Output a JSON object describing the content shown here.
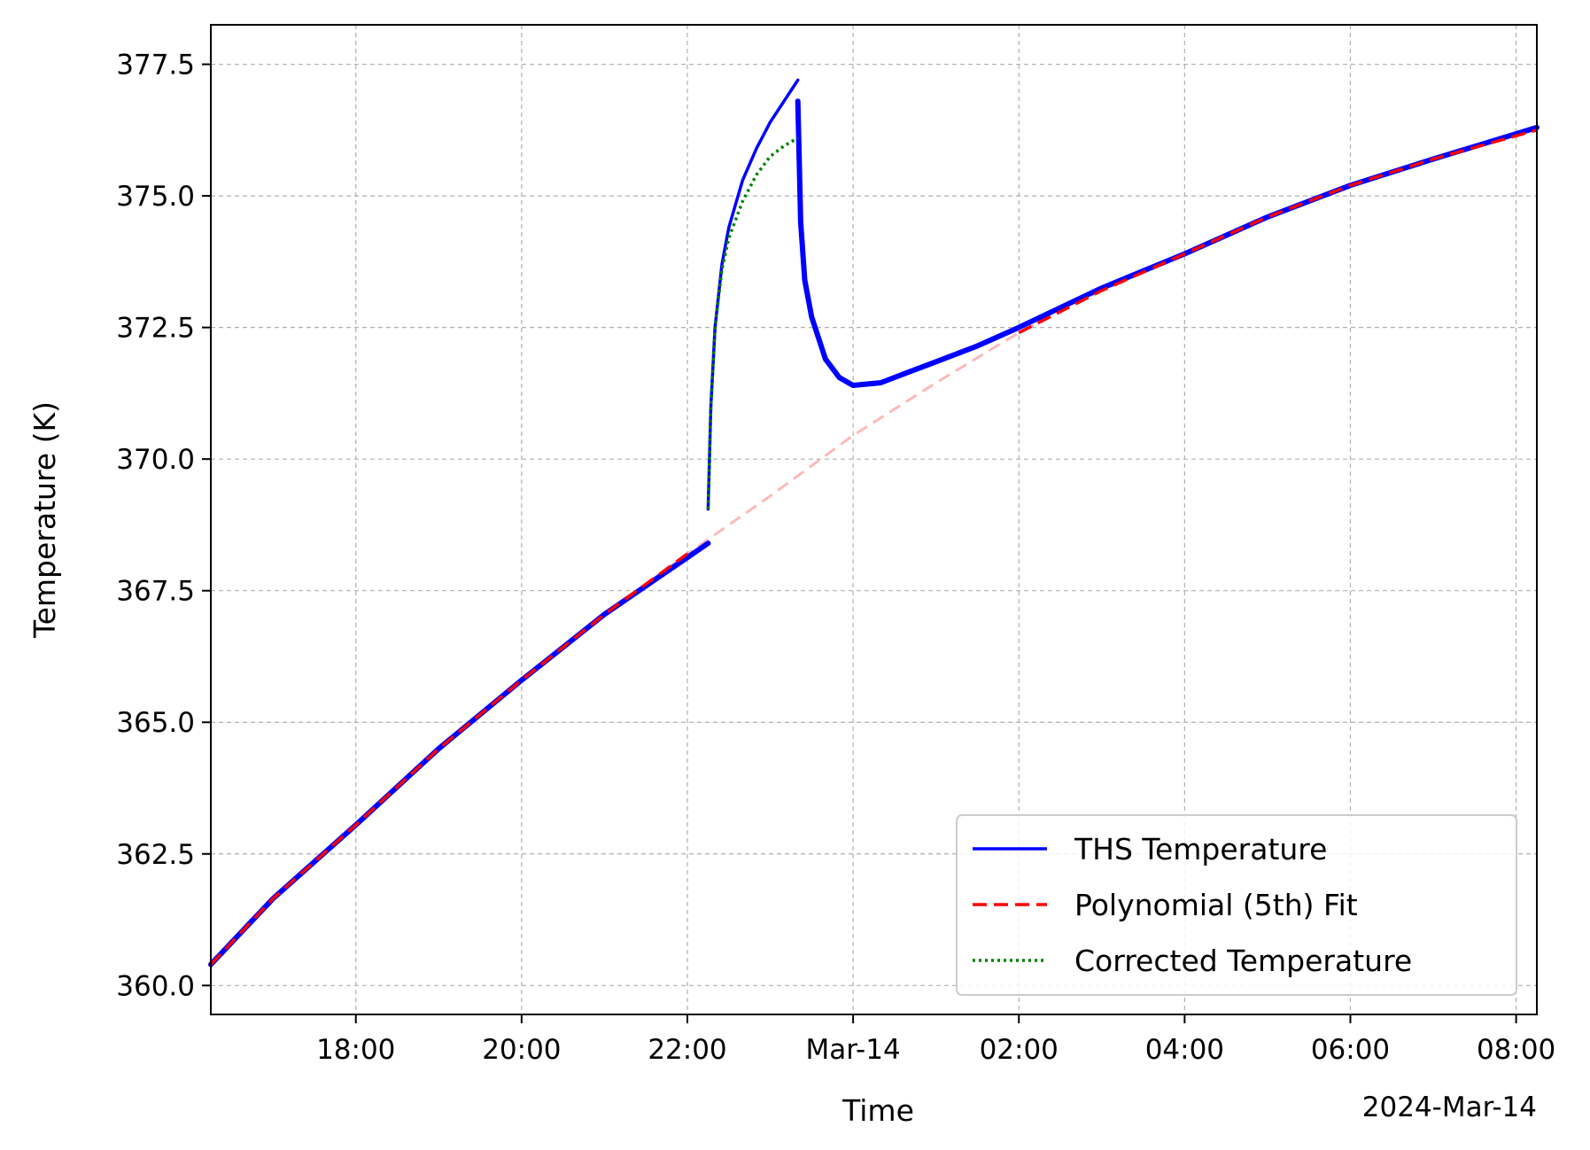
{
  "chart_data": {
    "type": "line",
    "title": "",
    "xlabel": "Time",
    "ylabel": "Temperature (K)",
    "x_offset_label": "2024-Mar-14",
    "xlim": [
      "2024-03-13 16:15",
      "2024-03-14 08:15"
    ],
    "ylim": [
      359.45,
      378.25
    ],
    "grid": true,
    "legend_position": "bottom-right",
    "x_ticks": [
      {
        "t": "2024-03-13 18:00",
        "label": "18:00"
      },
      {
        "t": "2024-03-13 20:00",
        "label": "20:00"
      },
      {
        "t": "2024-03-13 22:00",
        "label": "22:00"
      },
      {
        "t": "2024-03-14 00:00",
        "label": "Mar-14"
      },
      {
        "t": "2024-03-14 02:00",
        "label": "02:00"
      },
      {
        "t": "2024-03-14 04:00",
        "label": "04:00"
      },
      {
        "t": "2024-03-14 06:00",
        "label": "06:00"
      },
      {
        "t": "2024-03-14 08:00",
        "label": "08:00"
      }
    ],
    "y_ticks": [
      {
        "v": 360.0,
        "label": "360.0"
      },
      {
        "v": 362.5,
        "label": "362.5"
      },
      {
        "v": 365.0,
        "label": "365.0"
      },
      {
        "v": 367.5,
        "label": "367.5"
      },
      {
        "v": 370.0,
        "label": "370.0"
      },
      {
        "v": 372.5,
        "label": "372.5"
      },
      {
        "v": 375.0,
        "label": "375.0"
      },
      {
        "v": 377.5,
        "label": "377.5"
      }
    ],
    "series": [
      {
        "name": "THS Temperature",
        "color": "#0000ff",
        "style": "solid",
        "segments": [
          [
            [
              "2024-03-13 16:15",
              360.4
            ],
            [
              "2024-03-13 17:00",
              361.65
            ],
            [
              "2024-03-13 18:00",
              363.05
            ],
            [
              "2024-03-13 19:00",
              364.5
            ],
            [
              "2024-03-13 20:00",
              365.8
            ],
            [
              "2024-03-13 21:00",
              367.05
            ],
            [
              "2024-03-13 22:15",
              368.4
            ]
          ],
          [
            [
              "2024-03-13 22:15",
              369.05
            ],
            [
              "2024-03-13 22:17",
              371.0
            ],
            [
              "2024-03-13 22:20",
              372.5
            ],
            [
              "2024-03-13 22:25",
              373.7
            ],
            [
              "2024-03-13 22:30",
              374.4
            ],
            [
              "2024-03-13 22:40",
              375.3
            ],
            [
              "2024-03-13 22:50",
              375.9
            ],
            [
              "2024-03-13 23:00",
              376.4
            ],
            [
              "2024-03-13 23:10",
              376.8
            ],
            [
              "2024-03-13 23:20",
              377.2
            ]
          ],
          [
            [
              "2024-03-13 23:20",
              376.8
            ],
            [
              "2024-03-13 23:22",
              374.5
            ],
            [
              "2024-03-13 23:25",
              373.4
            ],
            [
              "2024-03-13 23:30",
              372.7
            ],
            [
              "2024-03-13 23:40",
              371.9
            ],
            [
              "2024-03-13 23:50",
              371.55
            ],
            [
              "2024-03-14 00:00",
              371.4
            ],
            [
              "2024-03-14 00:20",
              371.45
            ],
            [
              "2024-03-14 00:40",
              371.65
            ],
            [
              "2024-03-14 01:00",
              371.85
            ],
            [
              "2024-03-14 01:30",
              372.15
            ],
            [
              "2024-03-14 02:00",
              372.5
            ],
            [
              "2024-03-14 03:00",
              373.25
            ],
            [
              "2024-03-14 04:00",
              373.9
            ],
            [
              "2024-03-14 05:00",
              374.6
            ],
            [
              "2024-03-14 06:00",
              375.2
            ],
            [
              "2024-03-14 07:00",
              375.7
            ],
            [
              "2024-03-14 08:15",
              376.3
            ]
          ]
        ]
      },
      {
        "name": "Polynomial (5th) Fit",
        "color": "#ff0000",
        "style": "dashed",
        "points": [
          [
            "2024-03-13 16:15",
            360.4
          ],
          [
            "2024-03-13 17:00",
            361.65
          ],
          [
            "2024-03-13 18:00",
            363.05
          ],
          [
            "2024-03-13 19:00",
            364.5
          ],
          [
            "2024-03-13 20:00",
            365.8
          ],
          [
            "2024-03-13 21:00",
            367.05
          ],
          [
            "2024-03-13 22:00",
            368.2
          ],
          [
            "2024-03-13 23:00",
            369.3
          ],
          [
            "2024-03-14 00:00",
            370.45
          ],
          [
            "2024-03-14 01:00",
            371.45
          ],
          [
            "2024-03-14 02:00",
            372.4
          ],
          [
            "2024-03-14 03:00",
            373.2
          ],
          [
            "2024-03-14 04:00",
            373.9
          ],
          [
            "2024-03-14 05:00",
            374.6
          ],
          [
            "2024-03-14 06:00",
            375.2
          ],
          [
            "2024-03-14 07:00",
            375.7
          ],
          [
            "2024-03-14 08:15",
            376.25
          ]
        ]
      },
      {
        "name": "Corrected Temperature",
        "color": "#008000",
        "style": "dotted",
        "points": [
          [
            "2024-03-13 22:15",
            369.05
          ],
          [
            "2024-03-13 22:17",
            371.0
          ],
          [
            "2024-03-13 22:20",
            372.5
          ],
          [
            "2024-03-13 22:25",
            373.6
          ],
          [
            "2024-03-13 22:30",
            374.2
          ],
          [
            "2024-03-13 22:40",
            374.9
          ],
          [
            "2024-03-13 22:50",
            375.4
          ],
          [
            "2024-03-13 23:00",
            375.75
          ],
          [
            "2024-03-13 23:10",
            375.95
          ],
          [
            "2024-03-13 23:20",
            376.1
          ]
        ]
      }
    ]
  }
}
